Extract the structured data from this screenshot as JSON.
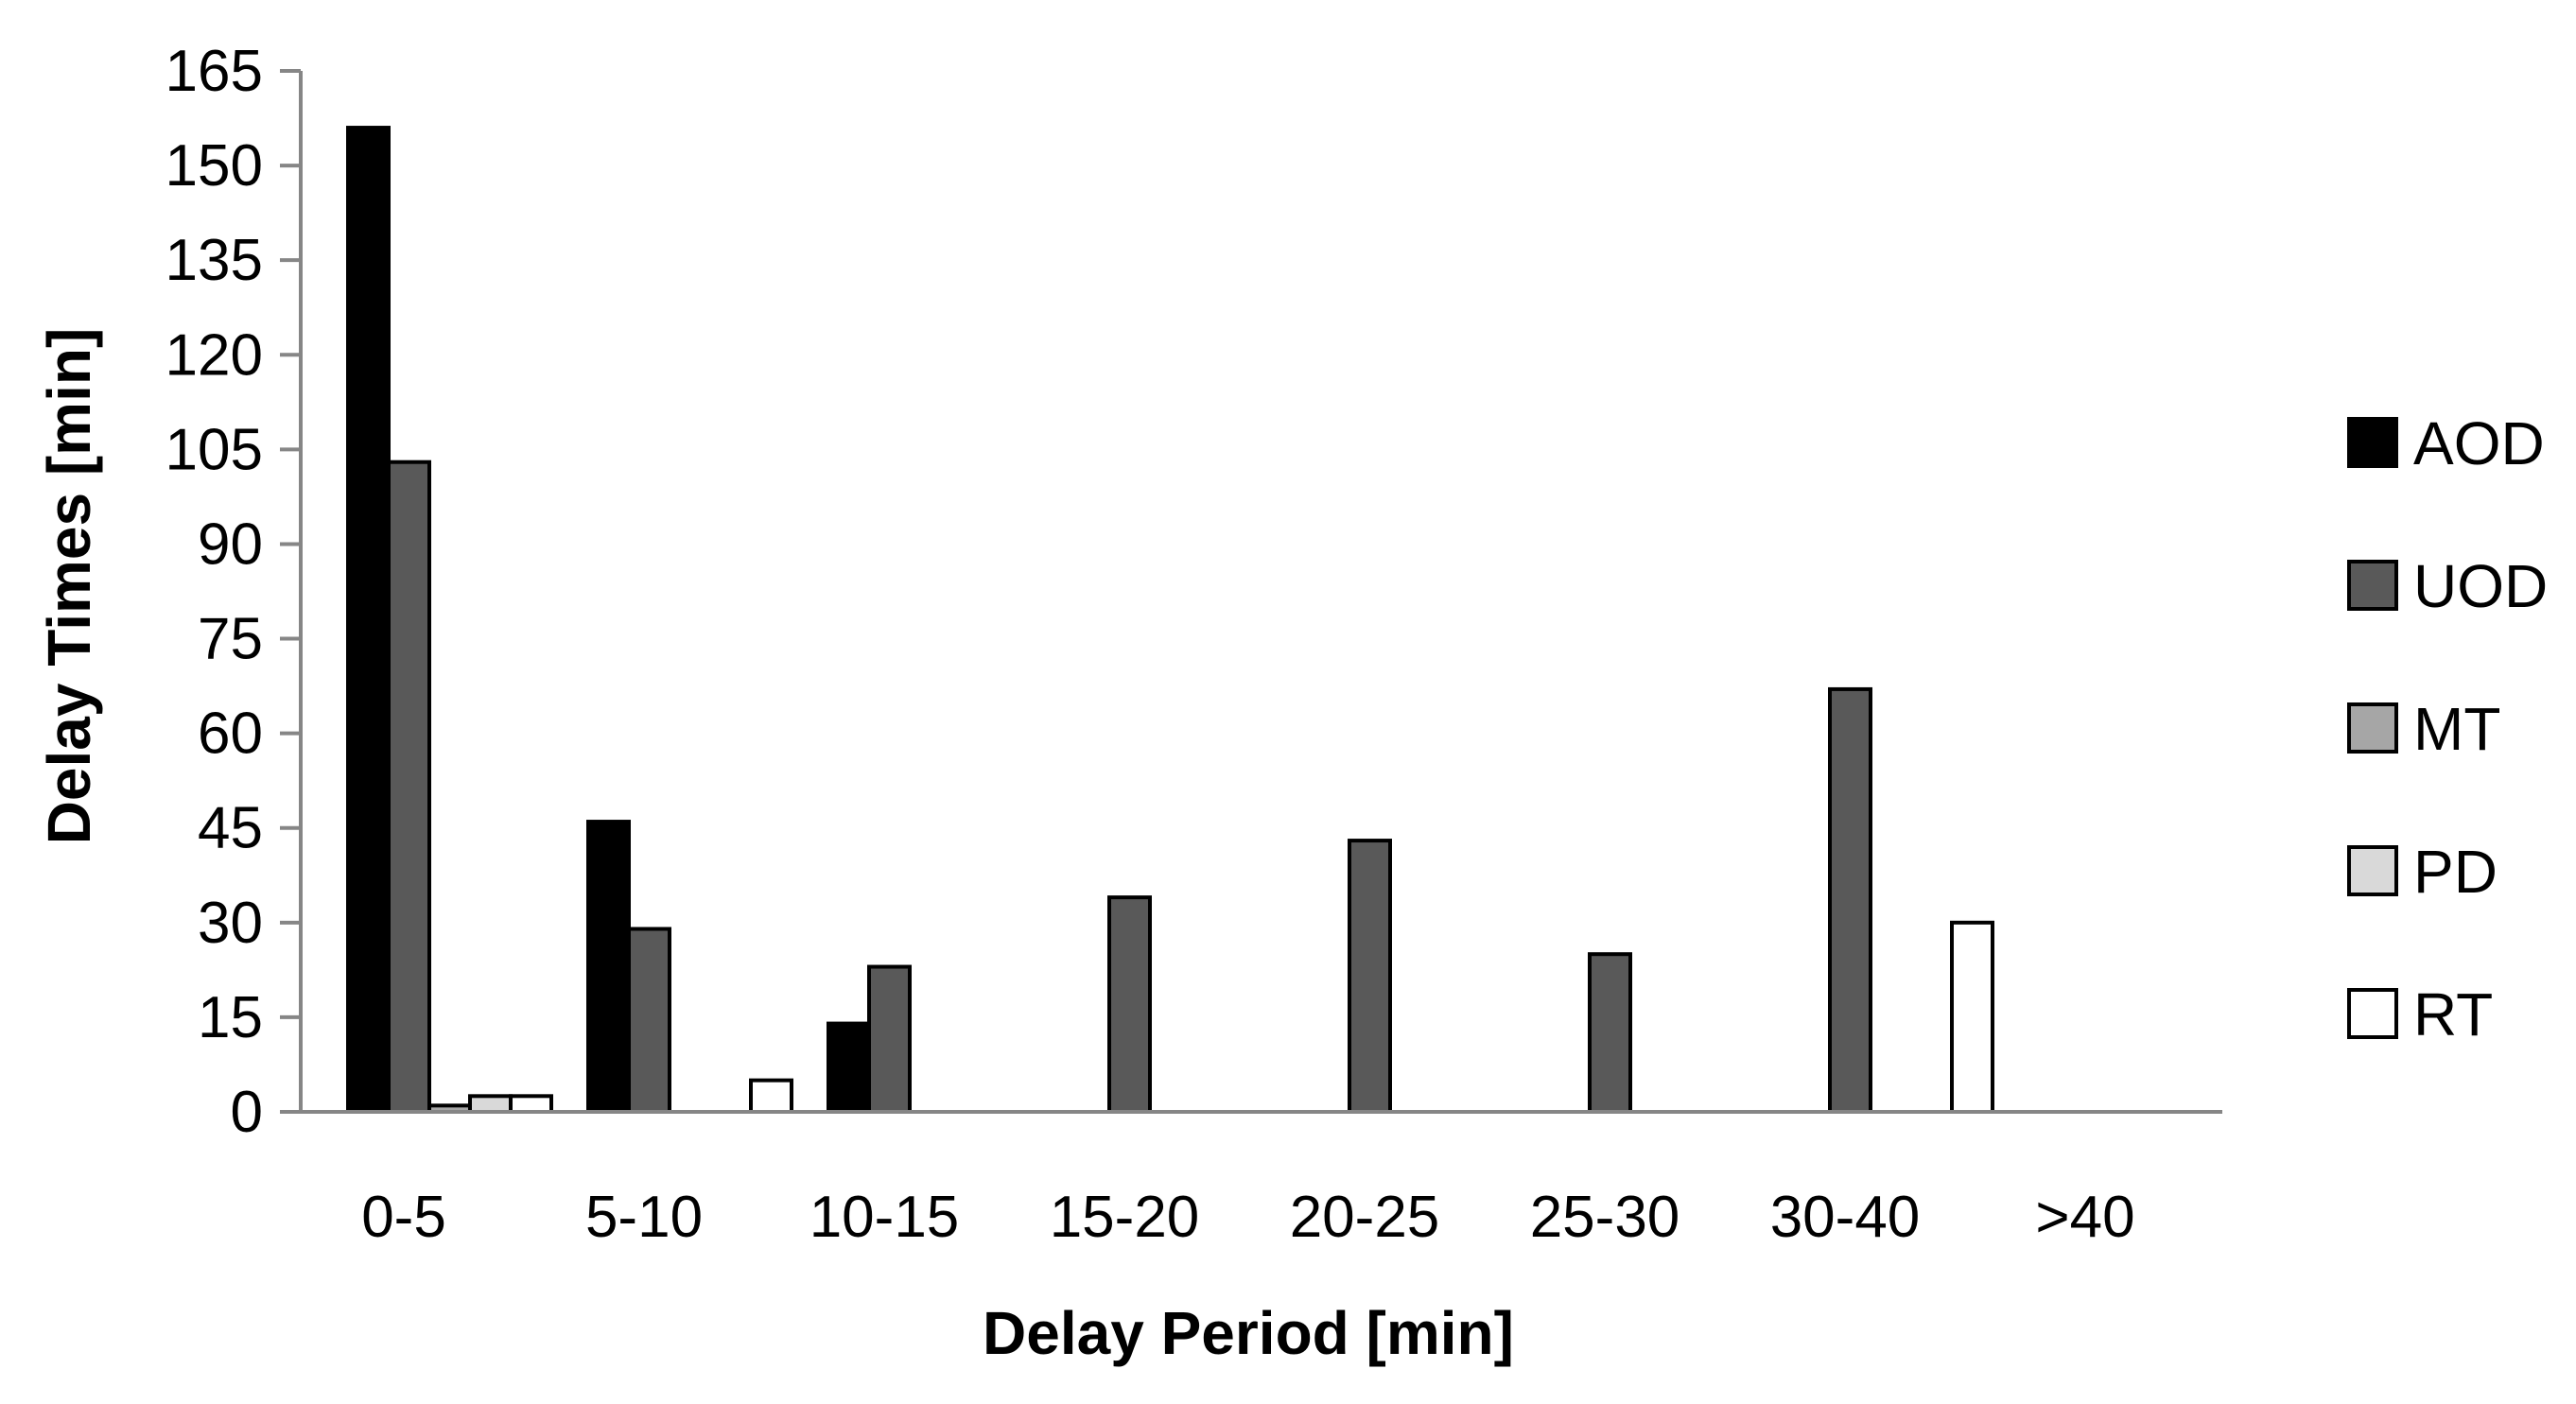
{
  "chart_data": {
    "type": "bar",
    "title": "",
    "xlabel": "Delay Period [min]",
    "ylabel": "Delay Times [min]",
    "ylim": [
      0,
      165
    ],
    "yticks": [
      0,
      15,
      30,
      45,
      60,
      75,
      90,
      105,
      120,
      135,
      150,
      165
    ],
    "grid": false,
    "legend_position": "right",
    "categories": [
      "0-5",
      "5-10",
      "10-15",
      "15-20",
      "20-25",
      "25-30",
      "30-40",
      ">40"
    ],
    "series": [
      {
        "name": "AOD",
        "color": "#000000",
        "values": [
          156,
          46,
          14,
          0,
          0,
          0,
          0,
          0
        ]
      },
      {
        "name": "UOD",
        "color": "#595959",
        "values": [
          103,
          29,
          23,
          34,
          43,
          25,
          67,
          0
        ]
      },
      {
        "name": "MT",
        "color": "#a6a6a6",
        "values": [
          1,
          0,
          0,
          0,
          0,
          0,
          0,
          0
        ]
      },
      {
        "name": "PD",
        "color": "#d9d9d9",
        "values": [
          2.5,
          0,
          0,
          0,
          0,
          0,
          0,
          0
        ]
      },
      {
        "name": "RT",
        "color": "#ffffff",
        "values": [
          2.5,
          5,
          0,
          0,
          0,
          0,
          30,
          0
        ]
      }
    ]
  }
}
